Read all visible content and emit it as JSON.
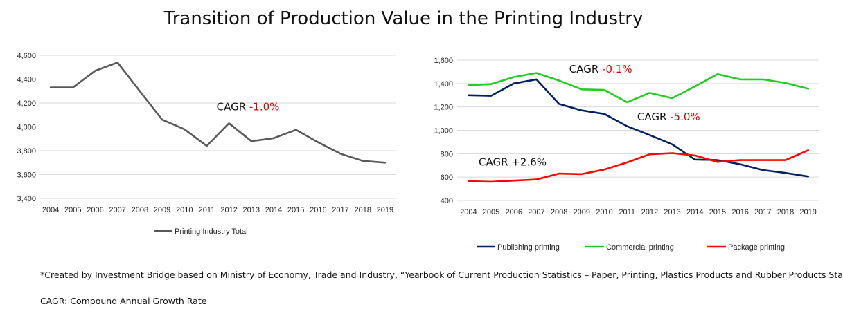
{
  "title": "Transition of Production Value in the Printing Industry",
  "footnotes": {
    "source": "*Created by Investment Bridge based on Ministry of Economy, Trade and Industry, “Yearbook of Current Production Statistics – Paper, Printing, Plastics Products and Rubber Products Statistics”",
    "cagr_definition": "CAGR: Compound Annual Growth Rate"
  },
  "chart_data": [
    {
      "type": "line",
      "title": "",
      "xlabel": "",
      "ylabel": "",
      "x": [
        "2004",
        "2005",
        "2006",
        "2007",
        "2008",
        "2009",
        "2010",
        "2011",
        "2012",
        "2013",
        "2014",
        "2015",
        "2016",
        "2017",
        "2018",
        "2019"
      ],
      "ylim": [
        3400,
        4600
      ],
      "yticks": [
        "3,400",
        "3,600",
        "3,800",
        "4,000",
        "4,200",
        "4,400",
        "4,600"
      ],
      "grid": "horizontal",
      "legend_position": "bottom",
      "series": [
        {
          "name": "Printing Industry Total",
          "color": "#595959",
          "values": [
            4330,
            4330,
            4470,
            4540,
            4300,
            4060,
            3980,
            3840,
            4030,
            3880,
            3905,
            3975,
            3870,
            3775,
            3715,
            3700
          ]
        }
      ],
      "annotations": [
        {
          "label": "CAGR",
          "value": "-1.0%",
          "value_color": "#e00000",
          "x": "2012",
          "y": 4140
        }
      ]
    },
    {
      "type": "line",
      "title": "",
      "xlabel": "",
      "ylabel": "",
      "x": [
        "2004",
        "2005",
        "2006",
        "2007",
        "2008",
        "2009",
        "2010",
        "2011",
        "2012",
        "2013",
        "2014",
        "2015",
        "2016",
        "2017",
        "2018",
        "2019"
      ],
      "ylim": [
        400,
        1600
      ],
      "yticks": [
        "400",
        "600",
        "800",
        "1,000",
        "1,200",
        "1,400",
        "1,600"
      ],
      "grid": "horizontal",
      "legend_position": "bottom",
      "series": [
        {
          "name": "Publishing printing",
          "color": "#002060",
          "values": [
            1300,
            1295,
            1400,
            1435,
            1225,
            1170,
            1140,
            1035,
            960,
            880,
            750,
            745,
            710,
            660,
            635,
            605
          ]
        },
        {
          "name": "Commercial printing",
          "color": "#22cc22",
          "values": [
            1385,
            1395,
            1455,
            1490,
            1425,
            1350,
            1345,
            1240,
            1320,
            1275,
            1375,
            1480,
            1435,
            1435,
            1405,
            1355
          ]
        },
        {
          "name": "Package printing",
          "color": "#ff0000",
          "values": [
            565,
            560,
            570,
            580,
            630,
            625,
            665,
            725,
            795,
            805,
            785,
            730,
            745,
            745,
            745,
            830
          ]
        }
      ],
      "annotations": [
        {
          "label": "CAGR",
          "value": "-0.1%",
          "value_color": "#e00000",
          "x": "2009",
          "y": 1495
        },
        {
          "label": "CAGR",
          "value": "-5.0%",
          "value_color": "#e00000",
          "x": "2012",
          "y": 1085
        },
        {
          "label": "CAGR",
          "value": "+2.6%",
          "value_color": "#111111",
          "x": "2005",
          "y": 700
        }
      ]
    }
  ]
}
